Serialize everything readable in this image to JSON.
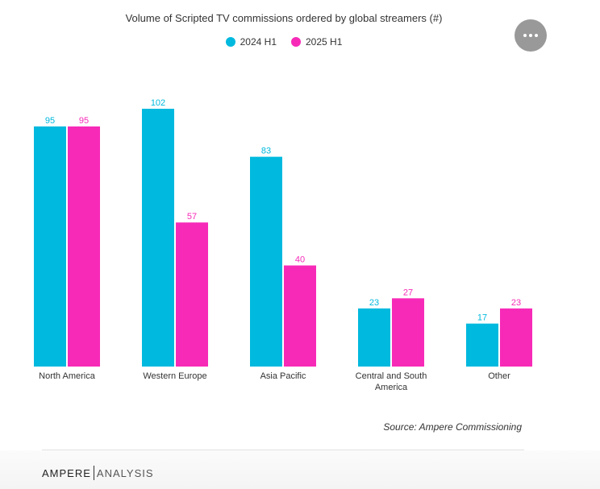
{
  "chart_data": {
    "type": "bar",
    "title": "Volume of Scripted TV commissions ordered by global streamers (#)",
    "categories": [
      "North America",
      "Western Europe",
      "Asia Pacific",
      "Central and South America",
      "Other"
    ],
    "series": [
      {
        "name": "2024 H1",
        "color": "#00b9de",
        "values": [
          95,
          102,
          83,
          23,
          17
        ]
      },
      {
        "name": "2025 H1",
        "color": "#f72ab8",
        "values": [
          95,
          57,
          40,
          27,
          23
        ]
      }
    ],
    "ylim": [
      0,
      102
    ],
    "grid": false,
    "legend_position": "top-center",
    "source": "Source: Ampere Commissioning"
  },
  "menu": {
    "icon": "ellipsis-icon"
  },
  "brand": {
    "left": "AMPERE",
    "right": "ANALYSIS"
  }
}
